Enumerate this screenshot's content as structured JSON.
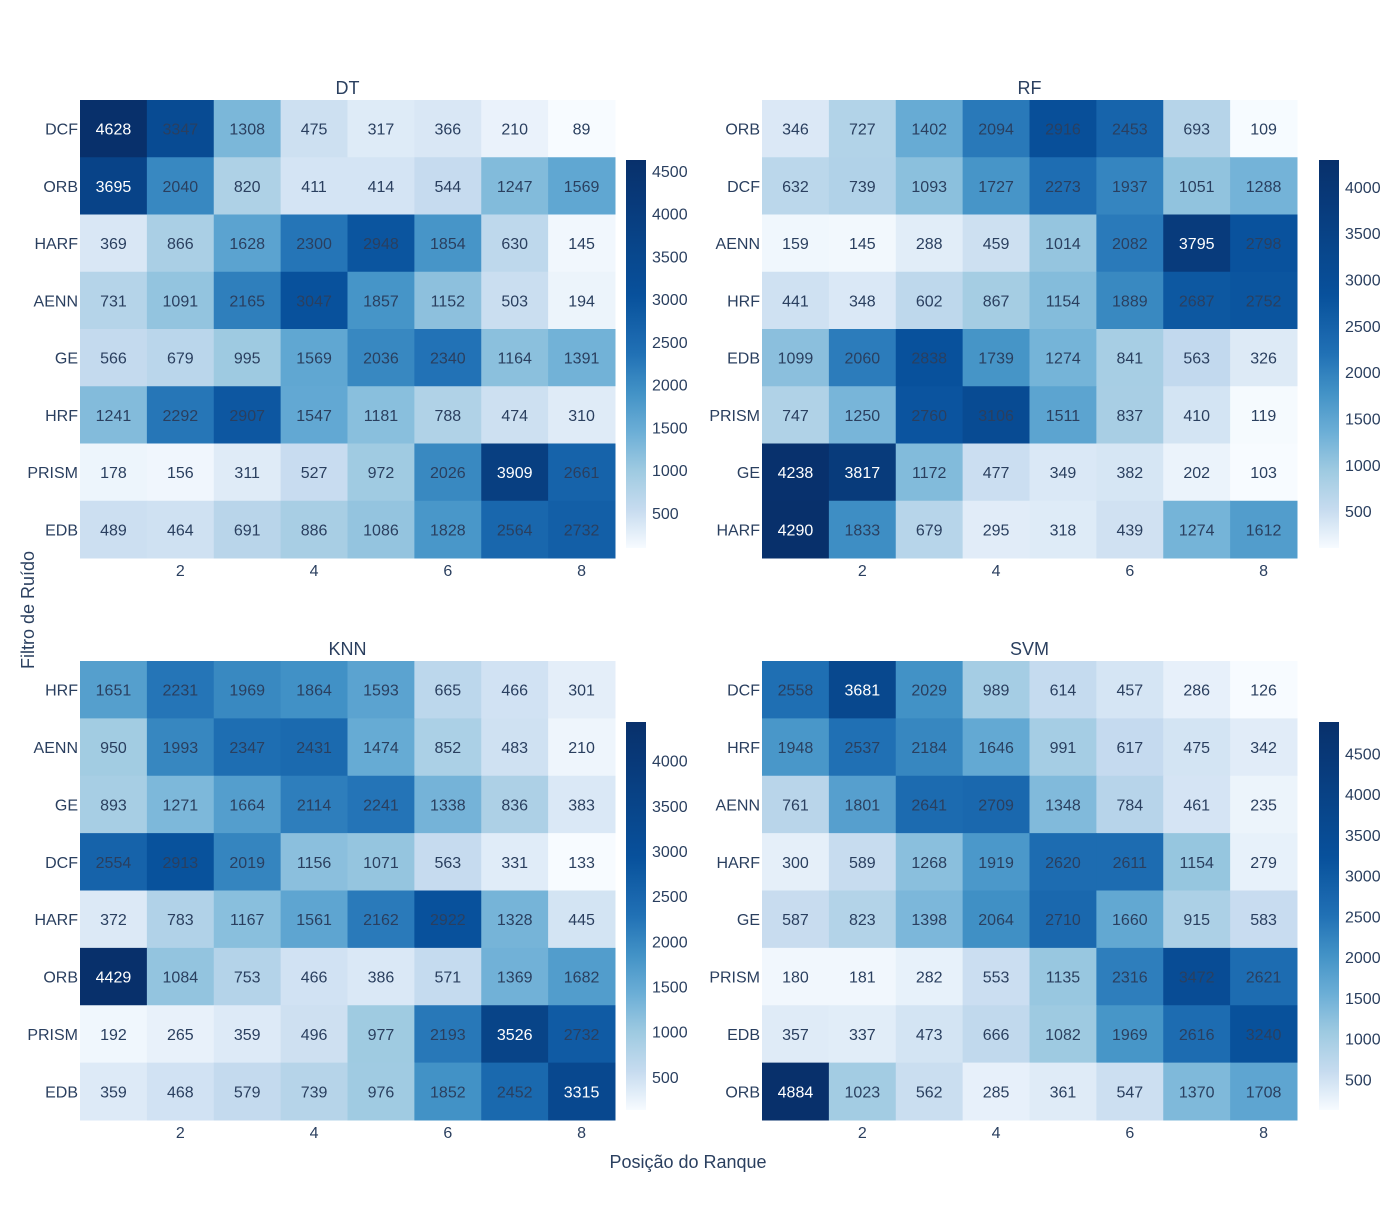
{
  "figure": {
    "xlabel": "Posição do Ranque",
    "ylabel": "Filtro de Ruído"
  },
  "chart_data": [
    {
      "type": "heatmap",
      "title": "DT",
      "x": [
        1,
        2,
        3,
        4,
        5,
        6,
        7,
        8
      ],
      "x_ticks": [
        2,
        4,
        6,
        8
      ],
      "y": [
        "DCF",
        "ORB",
        "HARF",
        "AENN",
        "GE",
        "HRF",
        "PRISM",
        "EDB"
      ],
      "z": [
        [
          4628,
          3347,
          1308,
          475,
          317,
          366,
          210,
          89
        ],
        [
          3695,
          2040,
          820,
          411,
          414,
          544,
          1247,
          1569
        ],
        [
          369,
          866,
          1628,
          2300,
          2948,
          1854,
          630,
          145
        ],
        [
          731,
          1091,
          2165,
          3047,
          1857,
          1152,
          503,
          194
        ],
        [
          566,
          679,
          995,
          1569,
          2036,
          2340,
          1164,
          1391
        ],
        [
          1241,
          2292,
          2907,
          1547,
          1181,
          788,
          474,
          310
        ],
        [
          178,
          156,
          311,
          527,
          972,
          2026,
          3909,
          2661
        ],
        [
          489,
          464,
          691,
          886,
          1086,
          1828,
          2564,
          2732
        ]
      ],
      "colorscale": "Blues",
      "colorbar_ticks": [
        500,
        1000,
        1500,
        2000,
        2500,
        3000,
        3500,
        4000,
        4500
      ],
      "zrange": [
        89,
        4628
      ]
    },
    {
      "type": "heatmap",
      "title": "RF",
      "x": [
        1,
        2,
        3,
        4,
        5,
        6,
        7,
        8
      ],
      "x_ticks": [
        2,
        4,
        6,
        8
      ],
      "y": [
        "ORB",
        "DCF",
        "AENN",
        "HRF",
        "EDB",
        "PRISM",
        "GE",
        "HARF"
      ],
      "z": [
        [
          346,
          727,
          1402,
          2094,
          2916,
          2453,
          693,
          109
        ],
        [
          632,
          739,
          1093,
          1727,
          2273,
          1937,
          1051,
          1288
        ],
        [
          159,
          145,
          288,
          459,
          1014,
          2082,
          3795,
          2798
        ],
        [
          441,
          348,
          602,
          867,
          1154,
          1889,
          2687,
          2752
        ],
        [
          1099,
          2060,
          2838,
          1739,
          1274,
          841,
          563,
          326
        ],
        [
          747,
          1250,
          2760,
          3106,
          1511,
          837,
          410,
          119
        ],
        [
          4238,
          3817,
          1172,
          477,
          349,
          382,
          202,
          103
        ],
        [
          4290,
          1833,
          679,
          295,
          318,
          439,
          1274,
          1612
        ]
      ],
      "colorscale": "Blues",
      "colorbar_ticks": [
        500,
        1000,
        1500,
        2000,
        2500,
        3000,
        3500,
        4000
      ],
      "zrange": [
        103,
        4290
      ]
    },
    {
      "type": "heatmap",
      "title": "KNN",
      "x": [
        1,
        2,
        3,
        4,
        5,
        6,
        7,
        8
      ],
      "x_ticks": [
        2,
        4,
        6,
        8
      ],
      "y": [
        "HRF",
        "AENN",
        "GE",
        "DCF",
        "HARF",
        "ORB",
        "PRISM",
        "EDB"
      ],
      "z": [
        [
          1651,
          2231,
          1969,
          1864,
          1593,
          665,
          466,
          301
        ],
        [
          950,
          1993,
          2347,
          2431,
          1474,
          852,
          483,
          210
        ],
        [
          893,
          1271,
          1664,
          2114,
          2241,
          1338,
          836,
          383
        ],
        [
          2554,
          2913,
          2019,
          1156,
          1071,
          563,
          331,
          133
        ],
        [
          372,
          783,
          1167,
          1561,
          2162,
          2922,
          1328,
          445
        ],
        [
          4429,
          1084,
          753,
          466,
          386,
          571,
          1369,
          1682
        ],
        [
          192,
          265,
          359,
          496,
          977,
          2193,
          3526,
          2732
        ],
        [
          359,
          468,
          579,
          739,
          976,
          1852,
          2452,
          3315
        ]
      ],
      "colorscale": "Blues",
      "colorbar_ticks": [
        500,
        1000,
        1500,
        2000,
        2500,
        3000,
        3500,
        4000
      ],
      "zrange": [
        133,
        4429
      ]
    },
    {
      "type": "heatmap",
      "title": "SVM",
      "x": [
        1,
        2,
        3,
        4,
        5,
        6,
        7,
        8
      ],
      "x_ticks": [
        2,
        4,
        6,
        8
      ],
      "y": [
        "DCF",
        "HRF",
        "AENN",
        "HARF",
        "GE",
        "PRISM",
        "EDB",
        "ORB"
      ],
      "z": [
        [
          2558,
          3681,
          2029,
          989,
          614,
          457,
          286,
          126
        ],
        [
          1948,
          2537,
          2184,
          1646,
          991,
          617,
          475,
          342
        ],
        [
          761,
          1801,
          2641,
          2709,
          1348,
          784,
          461,
          235
        ],
        [
          300,
          589,
          1268,
          1919,
          2620,
          2611,
          1154,
          279
        ],
        [
          587,
          823,
          1398,
          2064,
          2710,
          1660,
          915,
          583
        ],
        [
          180,
          181,
          282,
          553,
          1135,
          2316,
          3472,
          2621
        ],
        [
          357,
          337,
          473,
          666,
          1082,
          1969,
          2616,
          3240
        ],
        [
          4884,
          1023,
          562,
          285,
          361,
          547,
          1370,
          1708
        ]
      ],
      "colorscale": "Blues",
      "colorbar_ticks": [
        500,
        1000,
        1500,
        2000,
        2500,
        3000,
        3500,
        4000,
        4500
      ],
      "zrange": [
        126,
        4884
      ]
    }
  ]
}
